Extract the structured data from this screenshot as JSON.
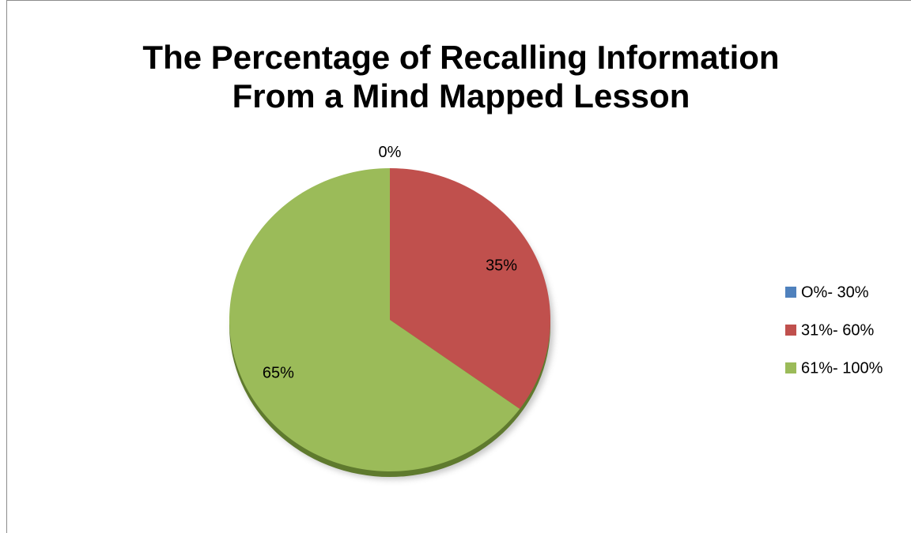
{
  "chart_data": {
    "type": "pie",
    "title": [
      "The Percentage of Recalling Information",
      "From a Mind Mapped Lesson"
    ],
    "categories": [
      "O%- 30%",
      "31%- 60%",
      "61%- 100%"
    ],
    "values": [
      0,
      35,
      65
    ],
    "value_labels": [
      "0%",
      "35%",
      "65%"
    ],
    "colors": [
      "#4f81bd",
      "#c0504d",
      "#9bbb59"
    ],
    "legend": "right"
  }
}
